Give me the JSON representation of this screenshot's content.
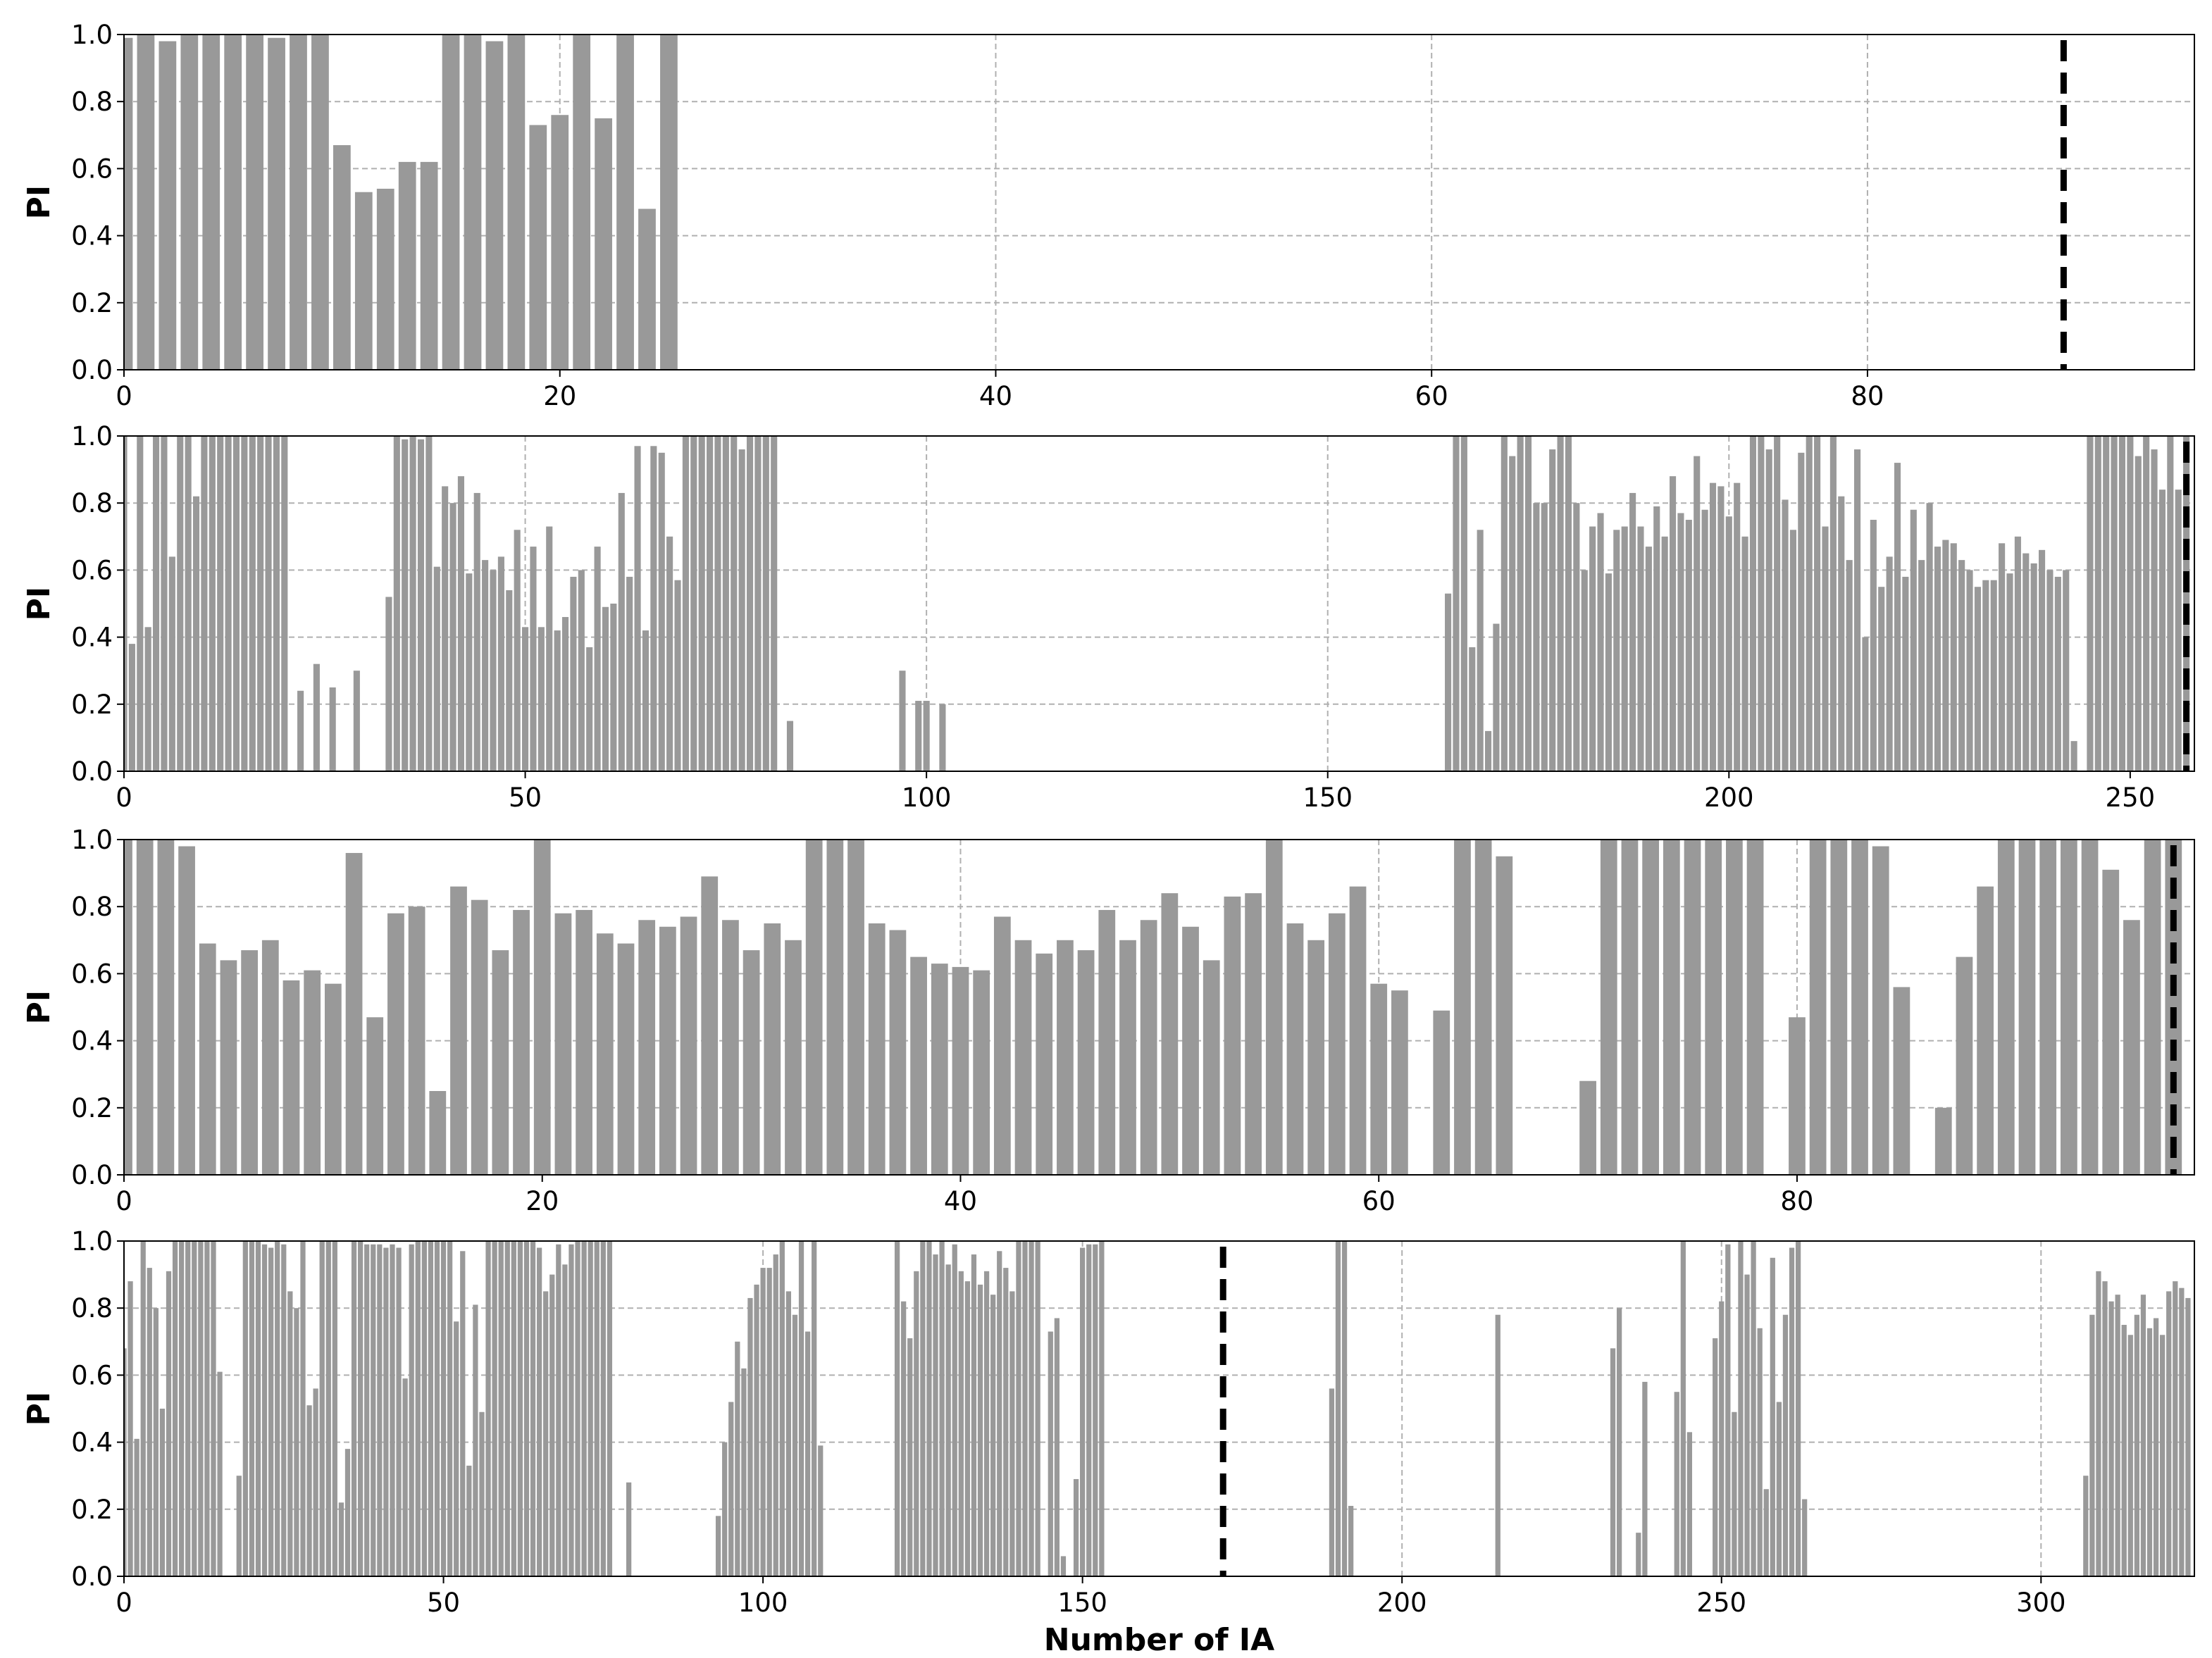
{
  "chart_data": [
    {
      "type": "bar",
      "ylabel": "PI",
      "color": "#999999",
      "vline": 89,
      "vline_color": "#000000",
      "grid": true,
      "xlim": [
        0,
        95
      ],
      "ylim": [
        0,
        1
      ],
      "xticks": [
        0,
        20,
        40,
        60,
        80
      ],
      "yticks": [
        {
          "value": 0,
          "label": "0.0"
        },
        0.2,
        0.4,
        0.6,
        0.8,
        {
          "value": 1,
          "label": "1.0"
        }
      ],
      "x": [
        0,
        1,
        2,
        3,
        4,
        5,
        6,
        7,
        8,
        9,
        10,
        11,
        12,
        13,
        14,
        15,
        16,
        17,
        18,
        19,
        20,
        21,
        22,
        23,
        24,
        25
      ],
      "values": [
        0.99,
        1,
        0.98,
        1,
        1,
        1,
        1,
        0.99,
        1,
        1,
        0.67,
        0.53,
        0.54,
        0.62,
        0.62,
        1,
        1,
        0.98,
        1,
        0.73,
        0.76,
        1,
        0.75,
        1,
        0.48,
        1
      ]
    },
    {
      "type": "bar",
      "ylabel": "PI",
      "color": "#999999",
      "vline": 257,
      "vline_color": "#000000",
      "grid": true,
      "xlim": [
        0,
        258
      ],
      "ylim": [
        0,
        1
      ],
      "xticks": [
        0,
        50,
        100,
        150,
        200,
        250
      ],
      "yticks": [
        {
          "value": 0,
          "label": "0.0"
        },
        0.2,
        0.4,
        0.6,
        0.8,
        {
          "value": 1,
          "label": "1.0"
        }
      ],
      "x": [
        0,
        1,
        2,
        3,
        4,
        5,
        6,
        7,
        8,
        9,
        10,
        11,
        12,
        13,
        14,
        15,
        16,
        17,
        18,
        19,
        20,
        22,
        24,
        26,
        29,
        33,
        34,
        35,
        36,
        37,
        38,
        39,
        40,
        41,
        42,
        43,
        44,
        45,
        46,
        47,
        48,
        49,
        50,
        51,
        52,
        53,
        54,
        55,
        56,
        57,
        58,
        59,
        60,
        61,
        62,
        63,
        64,
        65,
        66,
        67,
        68,
        69,
        70,
        71,
        72,
        73,
        74,
        75,
        76,
        77,
        78,
        79,
        80,
        81,
        83,
        97,
        99,
        100,
        102,
        165,
        166,
        167,
        168,
        169,
        170,
        171,
        172,
        173,
        174,
        175,
        176,
        177,
        178,
        179,
        180,
        181,
        182,
        183,
        184,
        185,
        186,
        187,
        188,
        189,
        190,
        191,
        192,
        193,
        194,
        195,
        196,
        197,
        198,
        199,
        200,
        201,
        202,
        203,
        204,
        205,
        206,
        207,
        208,
        209,
        210,
        211,
        212,
        213,
        214,
        215,
        216,
        217,
        218,
        219,
        220,
        221,
        222,
        223,
        224,
        225,
        226,
        227,
        228,
        229,
        230,
        231,
        232,
        233,
        234,
        235,
        236,
        237,
        238,
        239,
        240,
        241,
        242,
        243,
        245,
        246,
        247,
        248,
        249,
        250,
        251,
        252,
        253,
        254,
        255,
        256,
        257
      ],
      "values": [
        1,
        0.38,
        1,
        0.43,
        1,
        1,
        0.64,
        1,
        1,
        0.82,
        1,
        1,
        1,
        1,
        1,
        1,
        1,
        1,
        1,
        1,
        1,
        0.24,
        0.32,
        0.25,
        0.3,
        0.52,
        1,
        0.99,
        1,
        0.99,
        1,
        0.61,
        0.85,
        0.8,
        0.88,
        0.59,
        0.83,
        0.63,
        0.6,
        0.64,
        0.54,
        0.72,
        0.43,
        0.67,
        0.43,
        0.73,
        0.42,
        0.46,
        0.58,
        0.6,
        0.37,
        0.67,
        0.49,
        0.5,
        0.83,
        0.58,
        0.97,
        0.42,
        0.97,
        0.95,
        0.7,
        0.57,
        1,
        1,
        1,
        1,
        1,
        1,
        1,
        0.96,
        1,
        1,
        1,
        1,
        0.15,
        0.3,
        0.21,
        0.21,
        0.2,
        0.53,
        1,
        1,
        0.37,
        0.72,
        0.12,
        0.44,
        1,
        0.94,
        1,
        1,
        0.8,
        0.8,
        0.96,
        1,
        1,
        0.8,
        0.6,
        0.73,
        0.77,
        0.59,
        0.72,
        0.73,
        0.83,
        0.73,
        0.67,
        0.79,
        0.7,
        0.88,
        0.77,
        0.75,
        0.94,
        0.78,
        0.86,
        0.85,
        0.76,
        0.86,
        0.7,
        1,
        1,
        0.96,
        1,
        0.81,
        0.72,
        0.95,
        1,
        1,
        0.73,
        1,
        0.82,
        0.63,
        0.96,
        0.4,
        0.75,
        0.55,
        0.64,
        0.92,
        0.58,
        0.78,
        0.63,
        0.8,
        0.67,
        0.69,
        0.68,
        0.63,
        0.6,
        0.55,
        0.57,
        0.57,
        0.68,
        0.59,
        0.7,
        0.65,
        0.62,
        0.66,
        0.6,
        0.58,
        0.6,
        0.09,
        1,
        1,
        1,
        1,
        1,
        1,
        0.94,
        1,
        0.96,
        0.84,
        1,
        0.84,
        1
      ]
    },
    {
      "type": "bar",
      "ylabel": "PI",
      "color": "#999999",
      "vline": 98,
      "vline_color": "#000000",
      "grid": true,
      "xlim": [
        0,
        99
      ],
      "ylim": [
        0,
        1
      ],
      "xticks": [
        0,
        20,
        40,
        60,
        80
      ],
      "yticks": [
        {
          "value": 0,
          "label": "0.0"
        },
        0.2,
        0.4,
        0.6,
        0.8,
        {
          "value": 1,
          "label": "1.0"
        }
      ],
      "x": [
        0,
        1,
        2,
        3,
        4,
        5,
        6,
        7,
        8,
        9,
        10,
        11,
        12,
        13,
        14,
        15,
        16,
        17,
        18,
        19,
        20,
        21,
        22,
        23,
        24,
        25,
        26,
        27,
        28,
        29,
        30,
        31,
        32,
        33,
        34,
        35,
        36,
        37,
        38,
        39,
        40,
        41,
        42,
        43,
        44,
        45,
        46,
        47,
        48,
        49,
        50,
        51,
        52,
        53,
        54,
        55,
        56,
        57,
        58,
        59,
        60,
        61,
        63,
        64,
        65,
        66,
        70,
        71,
        72,
        73,
        74,
        75,
        76,
        77,
        78,
        80,
        81,
        82,
        83,
        84,
        85,
        87,
        88,
        89,
        90,
        91,
        92,
        93,
        94,
        95,
        96,
        97,
        98
      ],
      "values": [
        1,
        1,
        1,
        0.98,
        0.69,
        0.64,
        0.67,
        0.7,
        0.58,
        0.61,
        0.57,
        0.96,
        0.47,
        0.78,
        0.8,
        0.25,
        0.86,
        0.82,
        0.67,
        0.79,
        1,
        0.78,
        0.79,
        0.72,
        0.69,
        0.76,
        0.74,
        0.77,
        0.89,
        0.76,
        0.67,
        0.75,
        0.7,
        1,
        1,
        1,
        0.75,
        0.73,
        0.65,
        0.63,
        0.62,
        0.61,
        0.77,
        0.7,
        0.66,
        0.7,
        0.67,
        0.79,
        0.7,
        0.76,
        0.84,
        0.74,
        0.64,
        0.83,
        0.84,
        1,
        0.75,
        0.7,
        0.78,
        0.86,
        0.57,
        0.55,
        0.49,
        1,
        1,
        0.95,
        0.28,
        1,
        1,
        1,
        1,
        1,
        1,
        1,
        1,
        0.47,
        1,
        1,
        1,
        0.98,
        0.56,
        0.2,
        0.65,
        0.86,
        1,
        1,
        1,
        1,
        1,
        0.91,
        0.76,
        1,
        1
      ]
    },
    {
      "type": "bar",
      "ylabel": "PI",
      "xlabel": "Number of IA",
      "color": "#999999",
      "vline": 172,
      "vline_color": "#000000",
      "grid": true,
      "xlim": [
        0,
        324
      ],
      "ylim": [
        0,
        1
      ],
      "xticks": [
        0,
        50,
        100,
        150,
        200,
        250,
        300
      ],
      "yticks": [
        {
          "value": 0,
          "label": "0.0"
        },
        0.2,
        0.4,
        0.6,
        0.8,
        {
          "value": 1,
          "label": "1.0"
        }
      ],
      "x": [
        0,
        1,
        2,
        3,
        4,
        5,
        6,
        7,
        8,
        9,
        10,
        11,
        12,
        13,
        14,
        15,
        18,
        19,
        20,
        21,
        22,
        23,
        24,
        25,
        26,
        27,
        28,
        29,
        30,
        31,
        32,
        33,
        34,
        35,
        36,
        37,
        38,
        39,
        40,
        41,
        42,
        43,
        44,
        45,
        46,
        47,
        48,
        49,
        50,
        51,
        52,
        53,
        54,
        55,
        56,
        57,
        58,
        59,
        60,
        61,
        62,
        63,
        64,
        65,
        66,
        67,
        68,
        69,
        70,
        71,
        72,
        73,
        74,
        75,
        76,
        79,
        93,
        94,
        95,
        96,
        97,
        98,
        99,
        100,
        101,
        102,
        103,
        104,
        105,
        106,
        107,
        108,
        109,
        121,
        122,
        123,
        124,
        125,
        126,
        127,
        128,
        129,
        130,
        131,
        132,
        133,
        134,
        135,
        136,
        137,
        138,
        139,
        140,
        141,
        142,
        143,
        145,
        146,
        147,
        149,
        150,
        151,
        152,
        153,
        189,
        190,
        191,
        192,
        215,
        233,
        234,
        237,
        238,
        243,
        244,
        245,
        249,
        250,
        251,
        252,
        253,
        254,
        255,
        256,
        257,
        258,
        259,
        260,
        261,
        262,
        263,
        307,
        308,
        309,
        310,
        311,
        312,
        313,
        314,
        315,
        316,
        317,
        318,
        319,
        320,
        321,
        322,
        323
      ],
      "values": [
        0.68,
        0.88,
        0.41,
        1,
        0.92,
        0.8,
        0.5,
        0.91,
        1,
        1,
        1,
        1,
        1,
        1,
        1,
        0.61,
        0.3,
        1,
        1,
        1,
        0.99,
        0.98,
        1,
        0.99,
        0.85,
        0.8,
        1,
        0.51,
        0.56,
        1,
        1,
        1,
        0.22,
        0.38,
        1,
        1,
        0.99,
        0.99,
        0.99,
        0.98,
        0.99,
        0.98,
        0.59,
        0.99,
        1,
        1,
        1,
        1,
        1,
        1,
        0.76,
        0.97,
        0.33,
        0.81,
        0.49,
        1,
        1,
        1,
        1,
        1,
        1,
        1,
        1,
        0.98,
        0.85,
        0.9,
        0.99,
        0.93,
        0.99,
        1,
        1,
        1,
        1,
        1,
        1,
        0.28,
        0.18,
        0.4,
        0.52,
        0.7,
        0.62,
        0.83,
        0.87,
        0.92,
        0.92,
        0.96,
        1,
        0.85,
        0.78,
        1,
        0.73,
        1,
        0.39,
        1,
        0.82,
        0.71,
        0.91,
        1,
        1,
        0.96,
        1,
        0.93,
        0.99,
        0.91,
        0.88,
        0.96,
        0.87,
        0.91,
        0.84,
        0.97,
        0.92,
        0.85,
        1,
        1,
        1,
        1,
        0.73,
        0.77,
        0.06,
        0.29,
        0.98,
        0.99,
        0.99,
        1,
        0.56,
        1,
        1,
        0.21,
        0.78,
        0.68,
        0.8,
        0.13,
        0.58,
        0.55,
        1,
        0.43,
        0.71,
        0.82,
        0.99,
        0.49,
        1,
        0.9,
        1,
        0.74,
        0.26,
        0.95,
        0.52,
        0.78,
        0.98,
        1,
        0.23,
        0.3,
        0.78,
        0.91,
        0.88,
        0.82,
        0.84,
        0.75,
        0.72,
        0.78,
        0.84,
        0.74,
        0.77,
        0.72,
        0.85,
        0.88,
        0.86,
        0.83
      ]
    }
  ]
}
